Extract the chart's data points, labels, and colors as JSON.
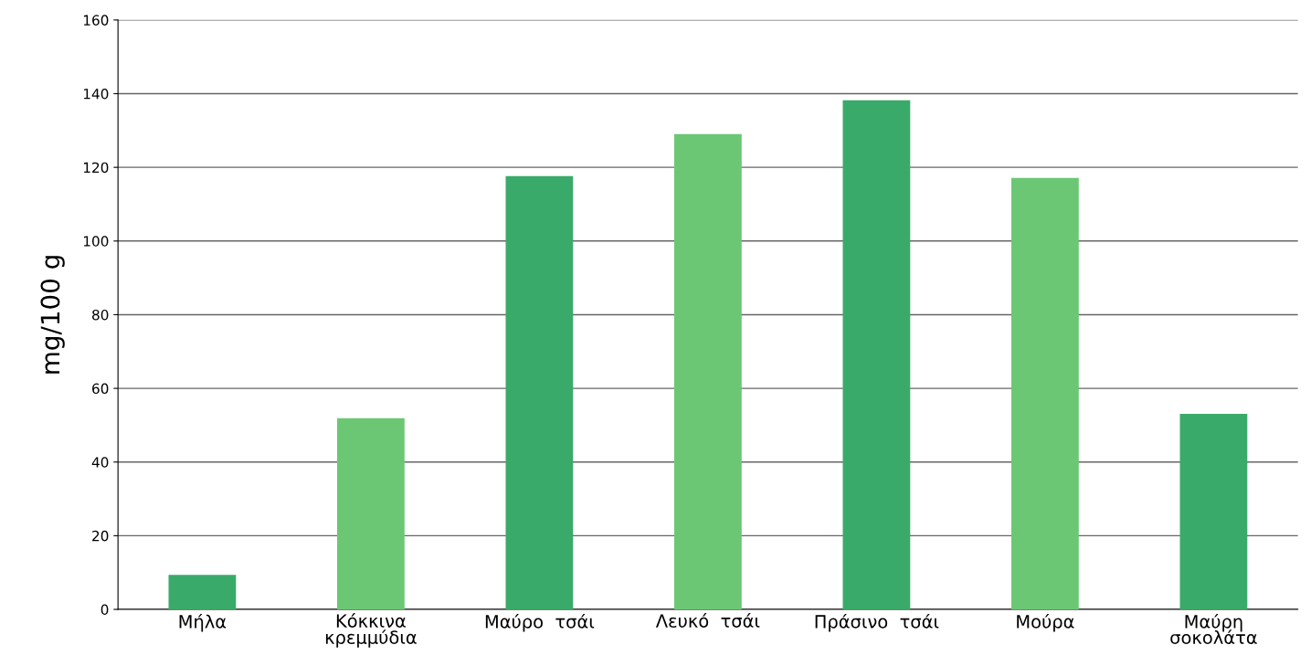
{
  "chart_data": {
    "type": "bar",
    "ylabel": "mg/100 g",
    "categories": [
      "Μήλα",
      "Κόκκινα\nκρεμμύδια",
      "Μαύρο  τσάι",
      "Λευκό  τσάι",
      "Πράσινο  τσάι",
      "Μούρα",
      "Μαύρη\nσοκολάτα"
    ],
    "values": [
      9.4,
      51.9,
      117.6,
      129,
      138.2,
      117.1,
      53.1
    ],
    "colors": [
      "#3aaa6a",
      "#6cc775",
      "#3aaa6a",
      "#6cc775",
      "#3aaa6a",
      "#6cc775",
      "#3aaa6a"
    ],
    "ylim": [
      0,
      160
    ],
    "yticks": [
      0,
      20,
      40,
      60,
      80,
      100,
      120,
      140,
      160
    ],
    "grid": "y"
  }
}
